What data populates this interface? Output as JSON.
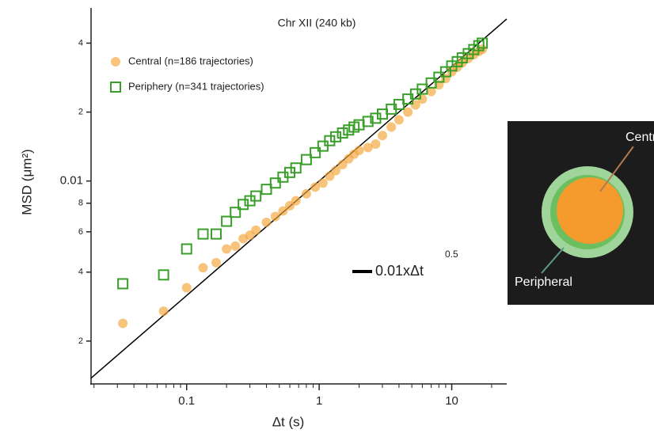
{
  "chart_data": {
    "type": "scatter",
    "title": "Chr XII (240 kb)",
    "x_label": "Δt (s)",
    "y_label": "MSD (μm²)",
    "x_scale": "log",
    "y_scale": "log",
    "xlim": [
      0.019,
      26
    ],
    "ylim": [
      0.0013,
      0.057
    ],
    "xticks": [
      0.1,
      1,
      10
    ],
    "minor_xticks": [
      0.02,
      0.03,
      0.04,
      0.05,
      0.06,
      0.07,
      0.08,
      0.09,
      0.2,
      0.3,
      0.4,
      0.5,
      0.6,
      0.7,
      0.8,
      0.9,
      2,
      3,
      4,
      5,
      6,
      7,
      8,
      9,
      20
    ],
    "yticks": [
      {
        "value": 0.002,
        "label": "2"
      },
      {
        "value": 0.004,
        "label": "4"
      },
      {
        "value": 0.006,
        "label": "6"
      },
      {
        "value": 0.008,
        "label": "8"
      },
      0.01,
      {
        "value": 0.02,
        "label": "2"
      },
      {
        "value": 0.04,
        "label": "4"
      }
    ],
    "legend_position": "upper left",
    "x": [
      0.033,
      0.067,
      0.1,
      0.133,
      0.167,
      0.2,
      0.233,
      0.267,
      0.3,
      0.333,
      0.4,
      0.467,
      0.533,
      0.6,
      0.667,
      0.8,
      0.933,
      1.067,
      1.2,
      1.333,
      1.5,
      1.667,
      1.833,
      2.0,
      2.333,
      2.667,
      3.0,
      3.5,
      4.0,
      4.667,
      5.333,
      6.0,
      7.0,
      8.0,
      9.0,
      10.0,
      11.0,
      12.0,
      13.333,
      14.667,
      16.0,
      17.0
    ],
    "series": [
      {
        "name": "Central (n=186 trajectories)",
        "color": "#f5a535",
        "marker": "circle",
        "values": [
          0.00239,
          0.0027,
          0.00342,
          0.00418,
          0.0044,
          0.00505,
          0.0052,
          0.0056,
          0.0058,
          0.0061,
          0.0066,
          0.007,
          0.0074,
          0.0078,
          0.0082,
          0.0088,
          0.0094,
          0.0098,
          0.0105,
          0.0111,
          0.0118,
          0.0125,
          0.0131,
          0.0136,
          0.014,
          0.0145,
          0.0158,
          0.0172,
          0.0185,
          0.02,
          0.0215,
          0.0228,
          0.0246,
          0.0263,
          0.028,
          0.03,
          0.0314,
          0.0328,
          0.0343,
          0.0356,
          0.0368,
          0.0376
        ]
      },
      {
        "name": "Periphery (n=341 trajectories)",
        "color": "#3a9e2a",
        "marker": "square-open",
        "values": [
          0.00356,
          0.00389,
          0.00505,
          0.00587,
          0.00587,
          0.00667,
          0.0073,
          0.0079,
          0.0082,
          0.0086,
          0.0092,
          0.0098,
          0.0104,
          0.0109,
          0.0114,
          0.0124,
          0.0133,
          0.0142,
          0.015,
          0.0156,
          0.0162,
          0.0167,
          0.0172,
          0.0176,
          0.0182,
          0.0188,
          0.0196,
          0.0206,
          0.0216,
          0.0228,
          0.024,
          0.0252,
          0.0268,
          0.0284,
          0.03,
          0.0318,
          0.0332,
          0.0345,
          0.036,
          0.0375,
          0.039,
          0.04
        ]
      }
    ],
    "fit": {
      "coefficient": 0.01,
      "exponent": 0.5,
      "color": "#000000",
      "label": "0.01xΔt",
      "label_exponent": "0.5"
    },
    "inset": {
      "central_label": "Central",
      "peripheral_label": "Peripheral"
    }
  }
}
